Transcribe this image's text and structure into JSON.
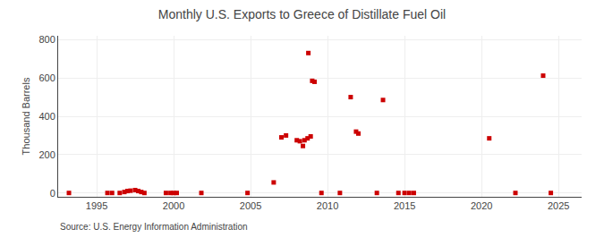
{
  "chart_data": {
    "type": "scatter",
    "title": "Monthly U.S. Exports to Greece of Distillate Fuel Oil",
    "ylabel": "Thousand Barrels",
    "annotations": [
      "Source: U.S. Energy Information Administration"
    ],
    "x": [
      1993.2,
      1995.7,
      1996.0,
      1996.5,
      1996.8,
      1997.0,
      1997.2,
      1997.5,
      1997.7,
      1997.9,
      1998.1,
      1999.5,
      1999.8,
      2000.0,
      2000.2,
      2001.8,
      2004.8,
      2006.5,
      2007.0,
      2007.3,
      2008.0,
      2008.2,
      2008.5,
      2008.7,
      2008.9,
      2008.4,
      2008.75,
      2009.0,
      2009.15,
      2009.6,
      2010.8,
      2011.5,
      2011.85,
      2012.0,
      2013.2,
      2013.6,
      2014.6,
      2015.0,
      2015.3,
      2015.6,
      2020.5,
      2022.2,
      2024.0,
      2024.5
    ],
    "values": [
      0,
      0,
      0,
      0,
      5,
      10,
      12,
      15,
      10,
      5,
      0,
      0,
      0,
      0,
      0,
      0,
      0,
      55,
      290,
      300,
      275,
      270,
      275,
      285,
      295,
      245,
      730,
      585,
      580,
      0,
      0,
      500,
      320,
      310,
      0,
      485,
      0,
      0,
      0,
      0,
      285,
      0,
      612,
      0
    ],
    "color": "#cc0000",
    "marker": "square",
    "xlim": [
      1992.5,
      2026.5
    ],
    "ylim": [
      -20,
      820
    ],
    "xticks": [
      1995,
      2000,
      2005,
      2010,
      2015,
      2020,
      2025
    ],
    "yticks": [
      0,
      200,
      400,
      600,
      800
    ],
    "grid": true
  }
}
